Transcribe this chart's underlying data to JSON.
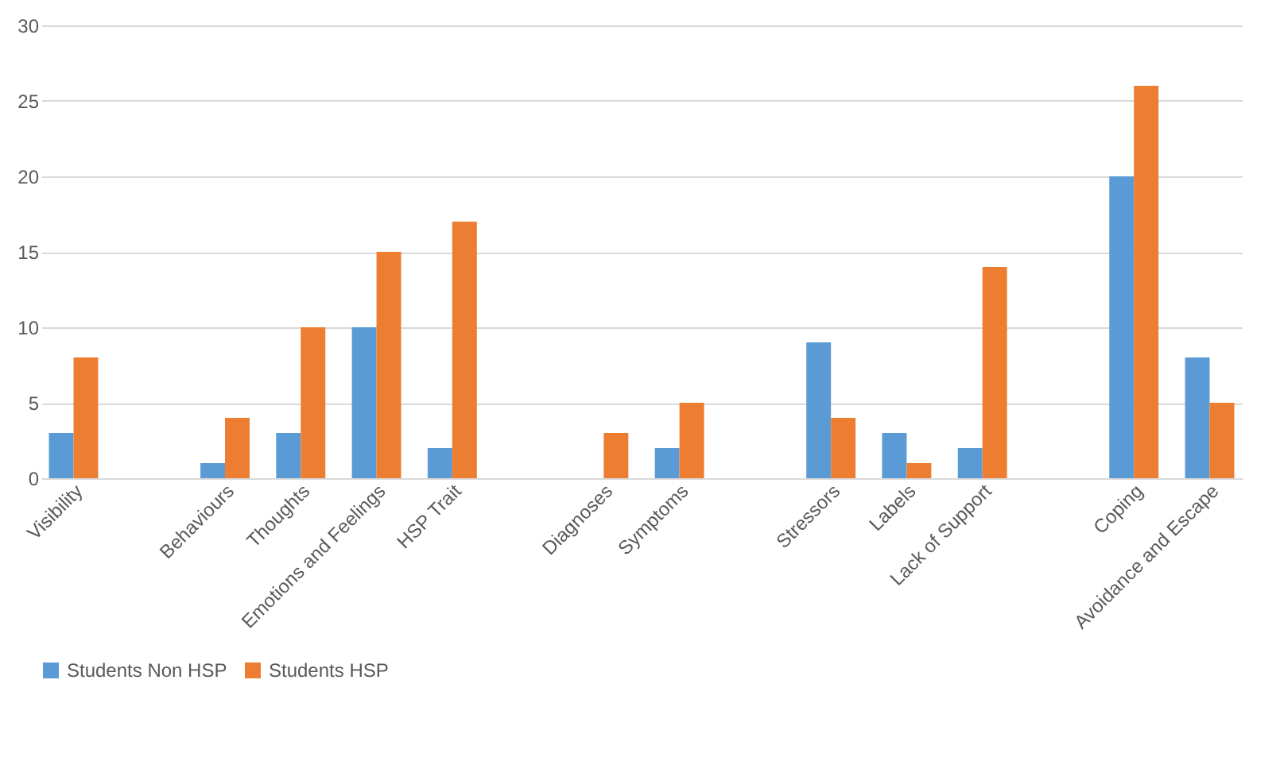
{
  "chart_data": {
    "type": "bar",
    "categories": [
      "Visibility",
      null,
      "Behaviours",
      "Thoughts",
      "Emotions and Feelings",
      "HSP Trait",
      null,
      "Diagnoses",
      "Symptoms",
      null,
      "Stressors",
      "Labels",
      "Lack of Support",
      null,
      "Coping",
      "Avoidance and Escape"
    ],
    "series": [
      {
        "name": "Students Non HSP",
        "color": "#5b9bd5",
        "values": [
          3,
          null,
          1,
          3,
          10,
          2,
          null,
          0,
          2,
          null,
          9,
          3,
          2,
          null,
          20,
          8
        ]
      },
      {
        "name": "Students HSP",
        "color": "#ed7d31",
        "values": [
          8,
          null,
          4,
          10,
          15,
          17,
          null,
          3,
          5,
          null,
          4,
          1,
          14,
          null,
          26,
          5
        ]
      }
    ],
    "ylim": [
      0,
      30
    ],
    "yticks": [
      0,
      5,
      10,
      15,
      20,
      25,
      30
    ],
    "grid": "y",
    "legend": "bottom"
  }
}
